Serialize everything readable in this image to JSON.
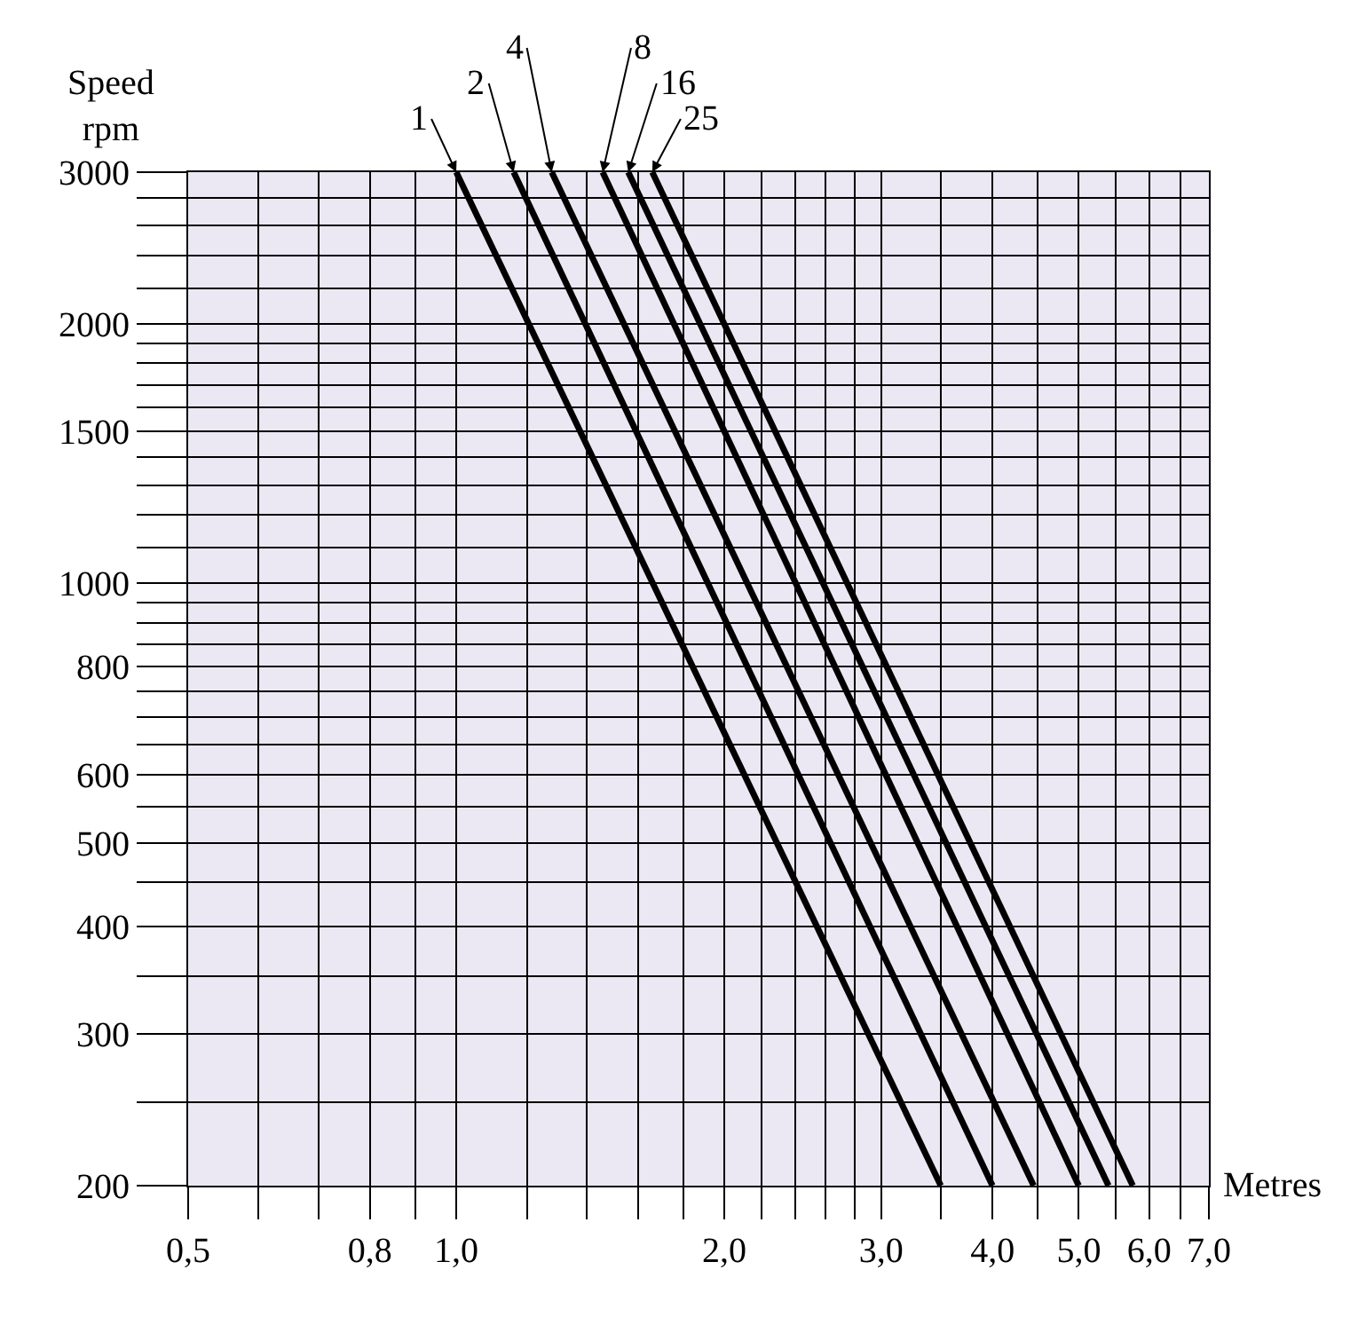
{
  "chart_data": {
    "type": "line",
    "xlabel": "Metres",
    "ylabel": "Speed\nrpm",
    "log": "xy",
    "grid": true,
    "legend": false,
    "marker": "none",
    "line_style": "solid",
    "xlim": [
      0.5,
      7.0
    ],
    "xticks": [
      {
        "value": 0.5,
        "label": "0,5"
      },
      {
        "value": 0.6,
        "label": null
      },
      {
        "value": 0.7,
        "label": null
      },
      {
        "value": 0.8,
        "label": "0,8"
      },
      {
        "value": 0.9,
        "label": null
      },
      {
        "value": 1.0,
        "label": "1,0"
      },
      {
        "value": 1.2,
        "label": null
      },
      {
        "value": 1.4,
        "label": null
      },
      {
        "value": 1.6,
        "label": null
      },
      {
        "value": 1.8,
        "label": null
      },
      {
        "value": 2.0,
        "label": "2,0"
      },
      {
        "value": 2.2,
        "label": null
      },
      {
        "value": 2.4,
        "label": null
      },
      {
        "value": 2.6,
        "label": null
      },
      {
        "value": 2.8,
        "label": null
      },
      {
        "value": 3.0,
        "label": "3,0"
      },
      {
        "value": 3.5,
        "label": null
      },
      {
        "value": 4.0,
        "label": "4,0"
      },
      {
        "value": 4.5,
        "label": null
      },
      {
        "value": 5.0,
        "label": "5,0"
      },
      {
        "value": 5.5,
        "label": null
      },
      {
        "value": 6.0,
        "label": "6,0"
      },
      {
        "value": 6.5,
        "label": null
      },
      {
        "value": 7.0,
        "label": "7,0"
      }
    ],
    "ylim": [
      200,
      3000
    ],
    "yticks": [
      200,
      {
        "value": 250,
        "label": null
      },
      300,
      {
        "value": 350,
        "label": null
      },
      400,
      {
        "value": 450,
        "label": null
      },
      500,
      {
        "value": 550,
        "label": null
      },
      600,
      {
        "value": 650,
        "label": null
      },
      {
        "value": 700,
        "label": null
      },
      {
        "value": 750,
        "label": null
      },
      800,
      {
        "value": 850,
        "label": null
      },
      {
        "value": 900,
        "label": null
      },
      {
        "value": 950,
        "label": null
      },
      1000,
      {
        "value": 1100,
        "label": null
      },
      {
        "value": 1200,
        "label": null
      },
      {
        "value": 1300,
        "label": null
      },
      {
        "value": 1400,
        "label": null
      },
      1500,
      {
        "value": 1600,
        "label": null
      },
      {
        "value": 1700,
        "label": null
      },
      {
        "value": 1800,
        "label": null
      },
      {
        "value": 1900,
        "label": null
      },
      2000,
      {
        "value": 2200,
        "label": null
      },
      {
        "value": 2400,
        "label": null
      },
      {
        "value": 2600,
        "label": null
      },
      {
        "value": 2800,
        "label": null
      },
      3000
    ],
    "series": [
      {
        "name": "1",
        "color": "#000000",
        "x": [
          1.0,
          3.5
        ],
        "values": [
          3000,
          200
        ]
      },
      {
        "name": "2",
        "color": "#000000",
        "x": [
          1.16,
          4.0
        ],
        "values": [
          3000,
          200
        ]
      },
      {
        "name": "4",
        "color": "#000000",
        "x": [
          1.28,
          4.45
        ],
        "values": [
          3000,
          200
        ]
      },
      {
        "name": "8",
        "color": "#000000",
        "x": [
          1.46,
          5.0
        ],
        "values": [
          3000,
          200
        ]
      },
      {
        "name": "16",
        "color": "#000000",
        "x": [
          1.56,
          5.4
        ],
        "values": [
          3000,
          200
        ]
      },
      {
        "name": "25",
        "color": "#000000",
        "x": [
          1.66,
          5.75
        ],
        "values": [
          3000,
          200
        ]
      }
    ]
  }
}
